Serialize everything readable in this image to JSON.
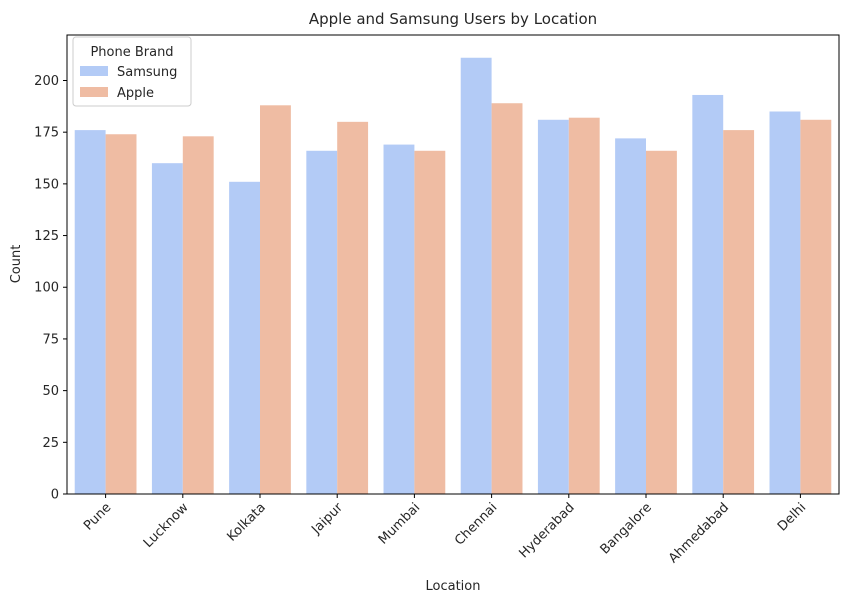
{
  "chart_data": {
    "type": "bar",
    "title": "Apple and Samsung Users by Location",
    "xlabel": "Location",
    "ylabel": "Count",
    "categories": [
      "Pune",
      "Lucknow",
      "Kolkata",
      "Jaipur",
      "Mumbai",
      "Chennai",
      "Hyderabad",
      "Bangalore",
      "Ahmedabad",
      "Delhi"
    ],
    "series": [
      {
        "name": "Samsung",
        "color": "#b3cbf6",
        "values": [
          176,
          160,
          151,
          166,
          169,
          211,
          181,
          172,
          193,
          185
        ]
      },
      {
        "name": "Apple",
        "color": "#efbca3",
        "values": [
          174,
          173,
          188,
          180,
          166,
          189,
          182,
          166,
          176,
          181
        ]
      }
    ],
    "ylim": [
      0,
      222
    ],
    "yticks": [
      0,
      25,
      50,
      75,
      100,
      125,
      150,
      175,
      200
    ],
    "legend": {
      "title": "Phone Brand",
      "position": "top-left"
    },
    "grid": false
  }
}
